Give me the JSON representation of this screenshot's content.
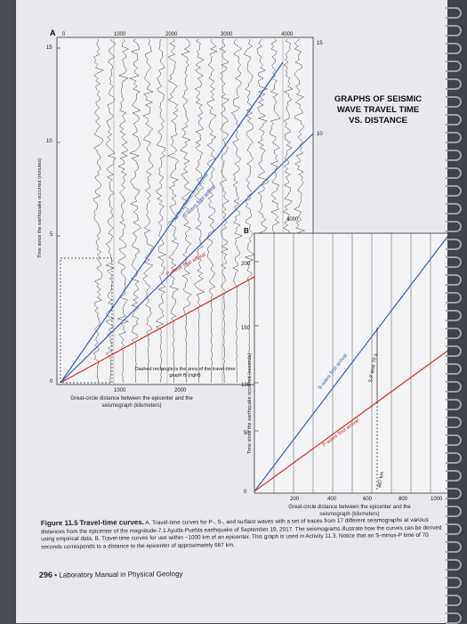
{
  "graph_a": {
    "panel_letter": "A",
    "x_ticks_top": [
      "0",
      "1000",
      "2000",
      "3000",
      "4000"
    ],
    "y_ticks_left": [
      "15",
      "10",
      "5",
      "0"
    ],
    "y_ticks_right": [
      "15",
      "10"
    ],
    "x_ticks_bottom": [
      "1000",
      "2000"
    ],
    "x_label": "Great-circle distance between the epicenter and the seismograph (kilometers)",
    "y_label": "Time since the earthquake occurred (minutes)",
    "tick_4000_inner": "4000",
    "surface_label": "Surface-wave first arrival",
    "s_label": "S-wave first arrival",
    "p_label": "P-wave first arrival",
    "dashed_note": "Dashed rectangle is the area of the travel-time graph B (right)"
  },
  "graph_b": {
    "panel_letter": "B",
    "y_ticks": [
      "200",
      "150",
      "100",
      "50",
      "0"
    ],
    "x_ticks": [
      "200",
      "400",
      "600",
      "800",
      "1000"
    ],
    "y_label": "Time since the earthquake occurred (seconds)",
    "x_label": "Great-circle distance between the epicenter and the seismograph (kilometers)",
    "s_label": "S-wave first arrival",
    "p_label": "P-wave first arrival",
    "sp_label": "S-P time 70 s",
    "dist_label": "667 km"
  },
  "graph_title": "GRAPHS OF SEISMIC WAVE TRAVEL TIME VS. DISTANCE",
  "caption": {
    "figure": "Figure 11.5",
    "heading": "Travel-time curves.",
    "text": "A. Travel-time curves for P-, S-, and surface waves with a set of traces from 17 different seismographs at various distances from the epicenter of the magnitude-7.1 Ayutla-Puebla earthquake of September 19, 2017. The seismograms illustrate how the curves can be derived using empirical data. B. Travel-time curves for use within ~1000 km of an epicenter. This graph is used in Activity 11.3. Notice that an S-minus-P time of 70 seconds corresponds to a distance to the epicenter of approximately 667 km."
  },
  "footer": {
    "page_number": "296",
    "title": "Laboratory Manual in Physical Geology"
  },
  "colors": {
    "s_wave": "#3b5fa8",
    "p_wave": "#c8322c",
    "surface_wave": "#3b5fa8"
  }
}
